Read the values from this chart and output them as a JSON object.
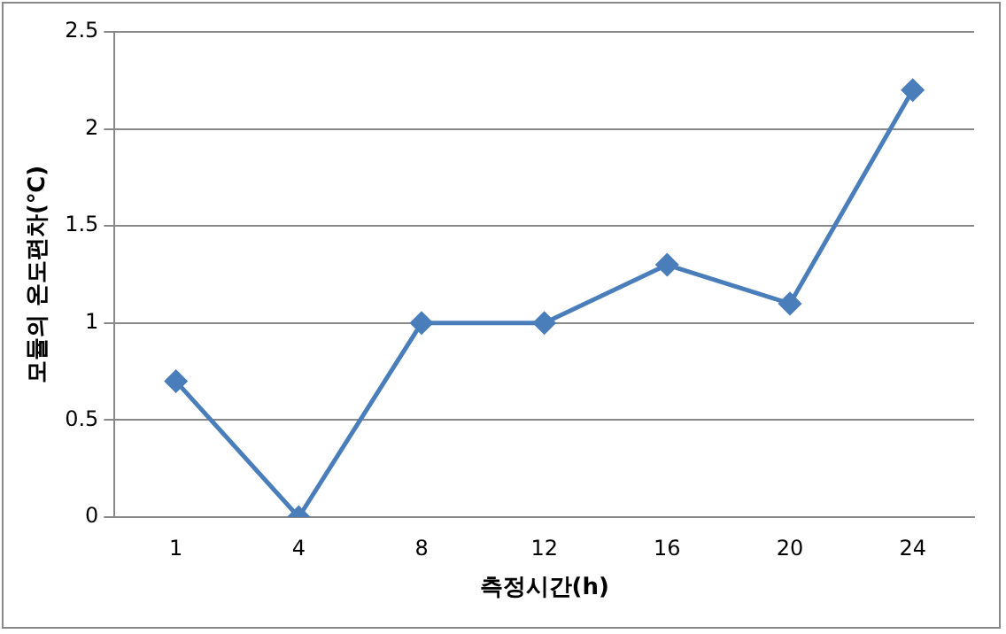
{
  "chart_data": {
    "type": "line",
    "xlabel": "측정시간(h)",
    "ylabel": "모듈의 온도편차(℃)",
    "categories": [
      "1",
      "4",
      "8",
      "12",
      "16",
      "20",
      "24"
    ],
    "series": [
      {
        "color": "#4a7ebb",
        "values": [
          0.7,
          0,
          1,
          1,
          1.3,
          1.1,
          2.2
        ]
      }
    ],
    "ylim": [
      0,
      2.5
    ],
    "yticks": [
      0,
      0.5,
      1,
      1.5,
      2,
      2.5
    ],
    "grid": "y",
    "legend": false,
    "marker": "diamond",
    "line_style": "solid"
  }
}
